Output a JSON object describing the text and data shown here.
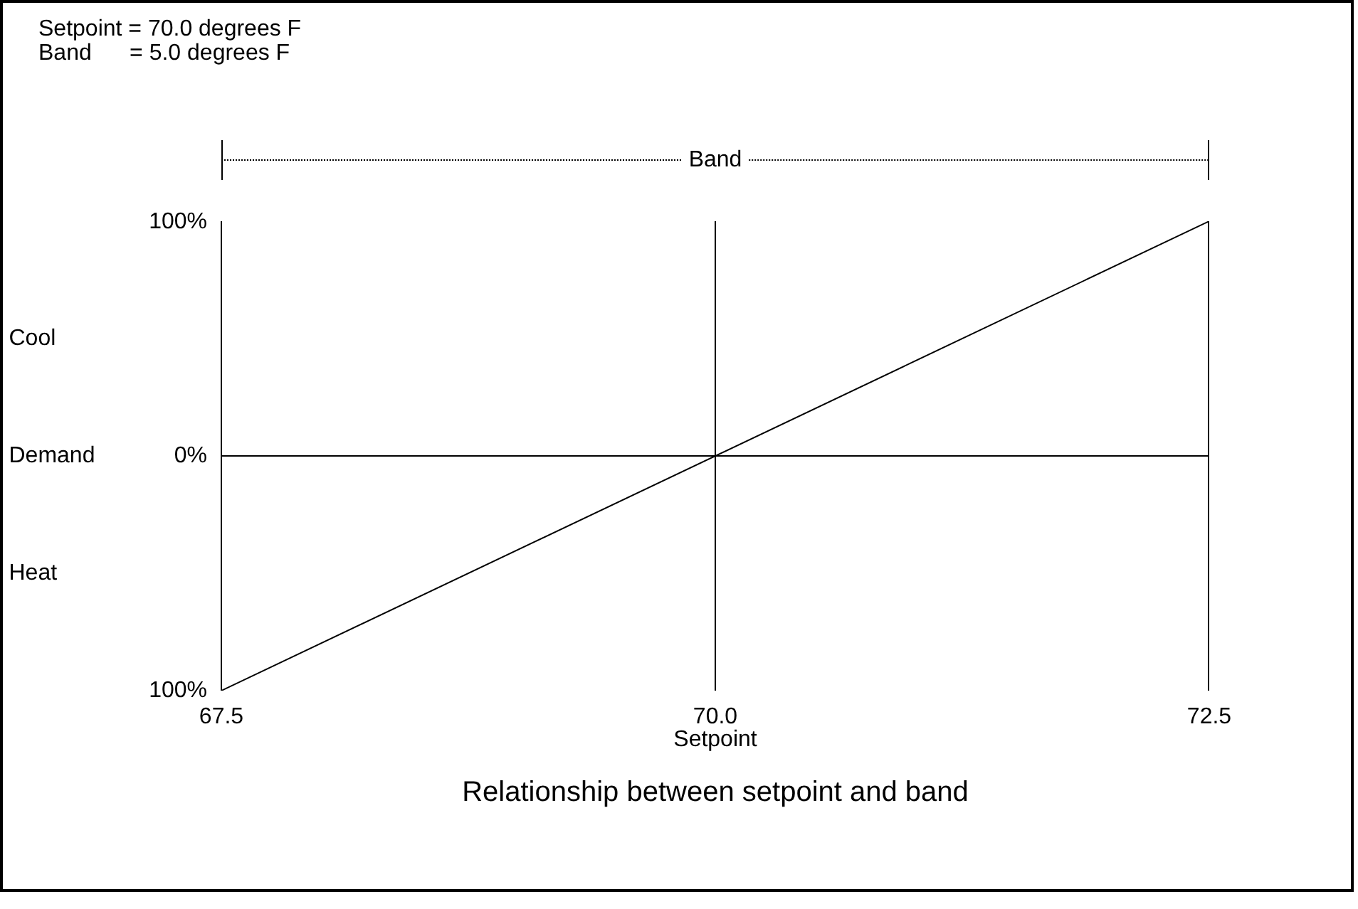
{
  "chart_data": {
    "type": "line",
    "title": "Relationship between setpoint and band",
    "xlabel": "Setpoint",
    "x": [
      67.5,
      72.5
    ],
    "series": [
      {
        "color": "#000000",
        "values": [
          -100,
          100
        ]
      }
    ],
    "xlim": [
      67.5,
      72.5
    ],
    "xticks": [
      67.5,
      {
        "value": 70,
        "label": "70.0"
      },
      72.5
    ],
    "ylim": [
      -100,
      100
    ],
    "yticks": [
      {
        "value": -100,
        "label": "100%"
      },
      {
        "value": 0,
        "label": "0%"
      },
      {
        "value": 100,
        "label": "100%"
      }
    ],
    "ref_lines": [
      {
        "axis": "y",
        "value": 0,
        "color": "#000000"
      },
      {
        "axis": "x",
        "value": 70,
        "color": "#000000"
      },
      {
        "axis": "x",
        "value": 72.5,
        "color": "#000000"
      }
    ],
    "annotations": [
      "Setpoint = 70.0 degrees F",
      "Band      = 5.0 degrees F",
      "Band",
      "Cool",
      "Demand",
      "Heat"
    ],
    "marker": "none",
    "line_style": "solid"
  }
}
